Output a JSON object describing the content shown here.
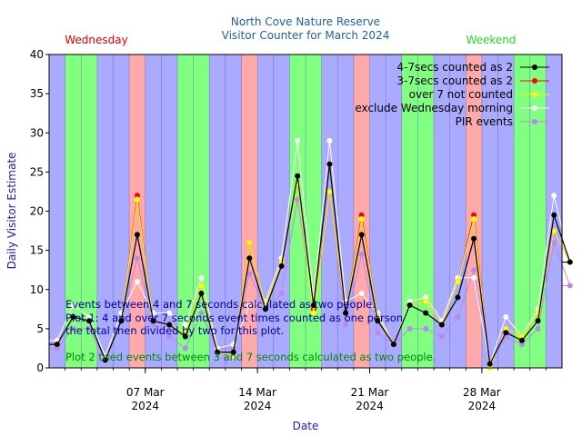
{
  "chart_data": {
    "type": "line",
    "title": "North Cove Nature Reserve",
    "subtitle": "Visitor Counter for March 2024",
    "xlabel": "Date",
    "ylabel": "Daily Visitor Estimate",
    "ylim": [
      0,
      40
    ],
    "yticks": [
      0,
      5,
      10,
      15,
      20,
      25,
      30,
      35,
      40
    ],
    "xlim_days": [
      1,
      33
    ],
    "xticks": [
      {
        "day": 7,
        "label": "07 Mar",
        "year": "2024"
      },
      {
        "day": 14,
        "label": "14 Mar",
        "year": "2024"
      },
      {
        "day": 21,
        "label": "21 Mar",
        "year": "2024"
      },
      {
        "day": 28,
        "label": "28 Mar",
        "year": "2024"
      }
    ],
    "band_labels": {
      "wednesday": "Wednesday",
      "weekend": "Weekend"
    },
    "colors": {
      "weekday": "#aaaaff",
      "weekend": "#80ff80",
      "wednesday": "#ffaaaa",
      "title": "#1f5fa0",
      "axis_label": "#1a1acc",
      "wednesday_label": "#dd0000",
      "weekend_label": "#22dd22"
    },
    "day_bands": {
      "weekend_days": [
        2,
        3,
        9,
        10,
        16,
        17,
        23,
        24,
        30,
        31
      ],
      "wednesday_days": [
        6,
        13,
        20,
        27
      ]
    },
    "legend_position": "top-right",
    "series": [
      {
        "name": "4-7secs counted as 2",
        "color": "#000000",
        "values": [
          3,
          6.5,
          6,
          1,
          6,
          17,
          6,
          5.5,
          4,
          9.5,
          2,
          2,
          14,
          7.5,
          13,
          24.5,
          8,
          26,
          7,
          17,
          6,
          3,
          8,
          7,
          5.5,
          9,
          16.5,
          0.5,
          4.5,
          3.5,
          6,
          19.5,
          13.5
        ]
      },
      {
        "name": "3-7secs counted as 2",
        "color": "#ff0000",
        "values": [
          3,
          6.5,
          6,
          1,
          6,
          22,
          6,
          5.5,
          4.5,
          10.5,
          2,
          1.5,
          16,
          8,
          13.5,
          23.5,
          7.5,
          22.5,
          7,
          19.5,
          6.5,
          3,
          8,
          8.5,
          5.5,
          11,
          19.5,
          0,
          5,
          4,
          7,
          17.5,
          13.5
        ]
      },
      {
        "name": "over 7 not counted",
        "color": "#ffff00",
        "values": [
          3,
          6.5,
          6,
          1,
          6,
          21.5,
          6,
          5.5,
          4.5,
          10.5,
          2,
          1.5,
          16,
          8,
          13.5,
          23.5,
          7,
          22.5,
          7,
          19,
          6.5,
          3,
          8,
          8.5,
          5.5,
          11,
          19,
          0,
          5,
          4,
          7,
          17.5,
          13.5
        ]
      },
      {
        "name": "exclude Wednesday morning",
        "color": "#ffffff",
        "values": [
          3.5,
          8,
          6.5,
          1.5,
          7,
          11,
          7,
          7,
          5.5,
          11.5,
          2.5,
          3,
          8,
          8.5,
          14,
          29,
          9,
          29,
          8.5,
          9.5,
          7,
          3,
          8.5,
          9,
          6,
          11.5,
          11.5,
          0.5,
          6.5,
          4,
          7.5,
          22,
          13.5
        ]
      },
      {
        "name": "PIR events",
        "color": "#bb88ee",
        "values": [
          2.5,
          5,
          5,
          1,
          6,
          14,
          5.5,
          4,
          2.5,
          7,
          2.5,
          2.5,
          12,
          7.5,
          9.5,
          21.5,
          8,
          22.5,
          5.5,
          14.5,
          4.5,
          3,
          5,
          5,
          4,
          6.5,
          12.5,
          0.5,
          4,
          3,
          5,
          16,
          10.5
        ]
      }
    ],
    "annotations": [
      {
        "text": "Events between 4 and 7 seconds calculated as two people.",
        "color": "#000099"
      },
      {
        "text": "Plot 1: 4 and over 7 seconds event times counted as one person",
        "color": "#000099"
      },
      {
        "text": "the total then divided by two for this plot.",
        "color": "#000099"
      },
      {
        "text": "Plot 2 tried events between 3 and 7 seconds calculated as two people.",
        "color": "#008800"
      }
    ]
  }
}
